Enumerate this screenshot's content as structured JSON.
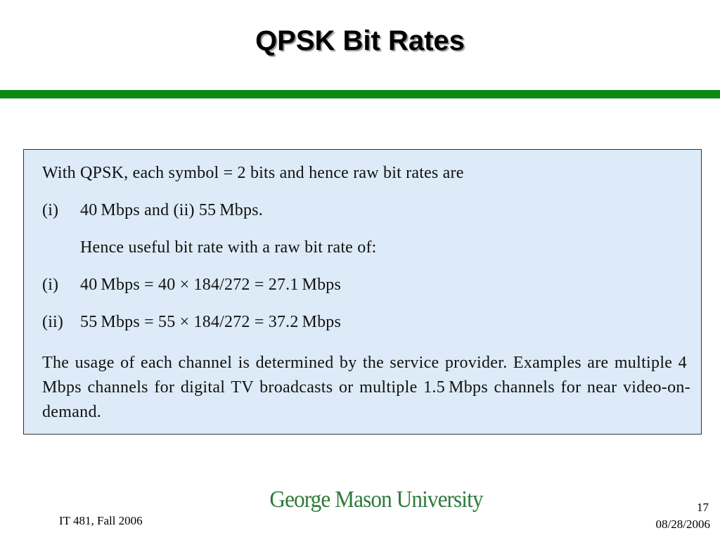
{
  "slide": {
    "title": "QPSK Bit Rates"
  },
  "content": {
    "intro": "With QPSK, each symbol = 2 bits and hence raw bit rates are",
    "raw_rates": {
      "marker_i": "(i)",
      "text": "40 Mbps and (ii) 55 Mbps."
    },
    "useful_heading": "Hence useful bit rate with a raw bit rate of:",
    "calc_i": {
      "marker": "(i)",
      "text": "40 Mbps = 40 × 184/272 = 27.1 Mbps"
    },
    "calc_ii": {
      "marker": "(ii)",
      "text": "55 Mbps = 55 × 184/272 = 37.2 Mbps"
    },
    "closing_paragraph": "The usage of each channel is determined by the service provider. Examples are multiple 4 Mbps channels for digital TV broadcasts or multiple 1.5 Mbps channels for near video-on-demand."
  },
  "footer": {
    "logo_text": "George Mason University",
    "course": "IT 481, Fall 2006",
    "page_number": "17",
    "date": "08/28/2006"
  },
  "colors": {
    "accent_rule": "#0b8a12",
    "box_background": "#dcebf7",
    "logo_text": "#2f7a3a"
  }
}
